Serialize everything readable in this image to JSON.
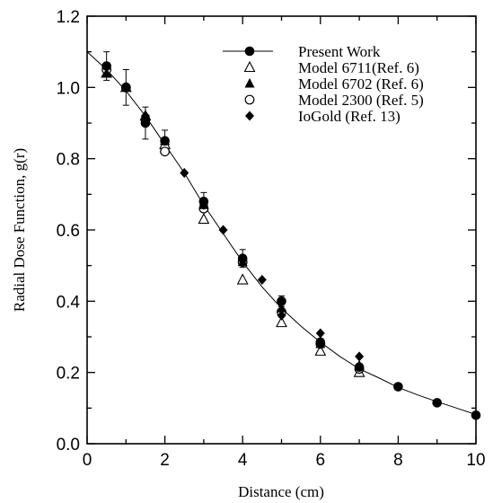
{
  "chart_data": {
    "type": "scatter",
    "xlabel": "Distance (cm)",
    "ylabel": "Radial Dose Function, g(r)",
    "xlim": [
      0,
      10
    ],
    "ylim": [
      0,
      1.2
    ],
    "xticks": [
      "0",
      "2",
      "4",
      "6",
      "8",
      "10"
    ],
    "yticks": [
      "0.0",
      "0.2",
      "0.4",
      "0.6",
      "0.8",
      "1.0",
      "1.2"
    ],
    "grid": false,
    "legend_position": "top-right",
    "series": [
      {
        "name": "Present Work",
        "marker": "filled-circle",
        "line": true,
        "x": [
          0.5,
          1,
          1.5,
          2,
          3,
          4,
          5,
          6,
          7,
          8,
          9,
          10
        ],
        "y": [
          1.06,
          1.0,
          0.9,
          0.85,
          0.68,
          0.52,
          0.4,
          0.285,
          0.215,
          0.16,
          0.115,
          0.08
        ],
        "yerr": [
          0.04,
          0.05,
          0.045,
          0.03,
          0.025,
          0.025,
          0.015,
          0.01,
          0.008,
          0.005,
          0.004,
          0.004
        ]
      },
      {
        "name": "Model 6711(Ref. 6)",
        "marker": "open-triangle",
        "x": [
          0.5,
          1,
          1.5,
          2,
          3,
          4,
          5,
          6,
          7
        ],
        "y": [
          1.04,
          1.0,
          0.92,
          0.84,
          0.63,
          0.46,
          0.34,
          0.26,
          0.2
        ]
      },
      {
        "name": "Model 6702 (Ref. 6)",
        "marker": "filled-triangle",
        "x": [
          0.5,
          1,
          1.5,
          2,
          3,
          4,
          5,
          6,
          7
        ],
        "y": [
          1.04,
          1.0,
          0.92,
          0.85,
          0.67,
          0.51,
          0.38,
          0.28,
          0.22
        ]
      },
      {
        "name": "Model 2300 (Ref. 5)",
        "marker": "open-circle",
        "x": [
          0.5,
          1,
          1.5,
          2,
          3,
          4,
          5,
          6,
          7
        ],
        "y": [
          1.05,
          1.0,
          0.91,
          0.82,
          0.66,
          0.51,
          0.37,
          0.28,
          0.21
        ]
      },
      {
        "name": "IoGold (Ref. 13)",
        "marker": "filled-diamond",
        "x": [
          0.5,
          1,
          1.5,
          2,
          2.5,
          3,
          3.5,
          4,
          4.5,
          5,
          6,
          7
        ],
        "y": [
          1.06,
          1.0,
          0.92,
          0.85,
          0.76,
          0.67,
          0.6,
          0.52,
          0.46,
          0.36,
          0.31,
          0.245
        ]
      }
    ],
    "fit_curve": {
      "x": [
        0,
        0.5,
        1,
        1.5,
        2,
        2.5,
        3,
        3.5,
        4,
        4.5,
        5,
        5.5,
        6,
        6.5,
        7,
        7.5,
        8,
        8.5,
        9,
        9.5,
        10
      ],
      "y": [
        1.1,
        1.05,
        0.99,
        0.92,
        0.84,
        0.76,
        0.67,
        0.59,
        0.51,
        0.44,
        0.38,
        0.33,
        0.285,
        0.245,
        0.21,
        0.185,
        0.158,
        0.137,
        0.118,
        0.1,
        0.082
      ]
    }
  }
}
